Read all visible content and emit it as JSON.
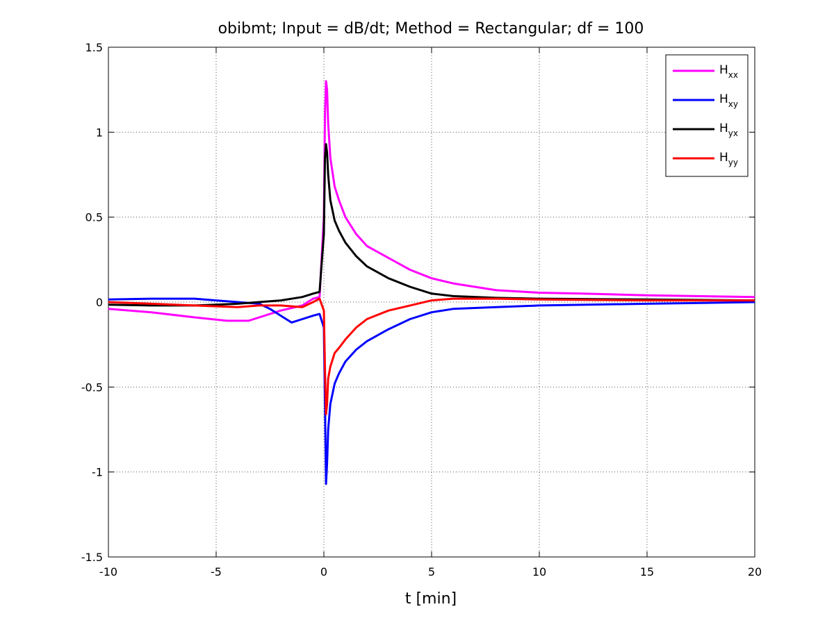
{
  "chart_data": {
    "type": "line",
    "title": "obibmt; Input = dB/dt; Method = Rectangular; df = 100",
    "xlabel": "t [min]",
    "ylabel": "",
    "xlim": [
      -10,
      20
    ],
    "ylim": [
      -1.5,
      1.5
    ],
    "xticks": [
      -10,
      -5,
      0,
      5,
      10,
      15,
      20
    ],
    "yticks": [
      -1.5,
      -1,
      -0.5,
      0,
      0.5,
      1,
      1.5
    ],
    "xtick_labels": [
      "-10",
      "-5",
      "0",
      "5",
      "10",
      "15",
      "20"
    ],
    "ytick_labels": [
      "-1.5",
      "-1",
      "-0.5",
      "0",
      "0.5",
      "1",
      "1.5"
    ],
    "grid": true,
    "legend_position": "top-right",
    "series": [
      {
        "name": "Hxx",
        "main": "H",
        "sub": "xx",
        "color": "#ff00ff",
        "x": [
          -10,
          -8,
          -6,
          -4.5,
          -3.5,
          -3,
          -2,
          -1,
          -0.5,
          -0.2,
          0,
          0.05,
          0.1,
          0.15,
          0.2,
          0.3,
          0.5,
          0.7,
          1,
          1.5,
          2,
          3,
          4,
          5,
          6,
          8,
          10,
          12,
          15,
          20
        ],
        "y": [
          -0.04,
          -0.06,
          -0.09,
          -0.11,
          -0.11,
          -0.09,
          -0.05,
          -0.02,
          0.02,
          0.03,
          0.5,
          1.1,
          1.3,
          1.25,
          1.05,
          0.85,
          0.68,
          0.6,
          0.5,
          0.4,
          0.33,
          0.26,
          0.19,
          0.14,
          0.11,
          0.07,
          0.055,
          0.05,
          0.04,
          0.03
        ]
      },
      {
        "name": "Hxy",
        "main": "H",
        "sub": "xy",
        "color": "#0000ff",
        "x": [
          -10,
          -8,
          -6,
          -5,
          -4,
          -3,
          -2.5,
          -2,
          -1.5,
          -1,
          -0.5,
          -0.2,
          0,
          0.05,
          0.1,
          0.15,
          0.2,
          0.3,
          0.5,
          0.7,
          1,
          1.5,
          2,
          3,
          4,
          5,
          6,
          8,
          10,
          15,
          20
        ],
        "y": [
          0.015,
          0.02,
          0.02,
          0.01,
          0.0,
          -0.01,
          -0.04,
          -0.08,
          -0.12,
          -0.1,
          -0.08,
          -0.07,
          -0.15,
          -0.6,
          -1.07,
          -0.95,
          -0.75,
          -0.6,
          -0.48,
          -0.42,
          -0.35,
          -0.28,
          -0.23,
          -0.16,
          -0.1,
          -0.06,
          -0.04,
          -0.03,
          -0.02,
          -0.01,
          0.0
        ]
      },
      {
        "name": "Hyx",
        "main": "H",
        "sub": "yx",
        "color": "#000000",
        "x": [
          -10,
          -8,
          -6,
          -5,
          -4,
          -3,
          -2,
          -1,
          -0.5,
          -0.2,
          0,
          0.05,
          0.1,
          0.15,
          0.2,
          0.3,
          0.5,
          0.7,
          1,
          1.5,
          2,
          3,
          4,
          5,
          6,
          8,
          10,
          15,
          20
        ],
        "y": [
          -0.015,
          -0.02,
          -0.02,
          -0.015,
          -0.01,
          0.0,
          0.01,
          0.03,
          0.05,
          0.06,
          0.4,
          0.85,
          0.93,
          0.88,
          0.75,
          0.6,
          0.48,
          0.42,
          0.35,
          0.27,
          0.21,
          0.14,
          0.09,
          0.05,
          0.035,
          0.025,
          0.02,
          0.015,
          0.01
        ]
      },
      {
        "name": "Hyy",
        "main": "H",
        "sub": "yy",
        "color": "#ff0000",
        "x": [
          -10,
          -8,
          -6,
          -5,
          -4,
          -3,
          -2,
          -1,
          -0.5,
          -0.2,
          0,
          0.05,
          0.1,
          0.15,
          0.2,
          0.3,
          0.5,
          0.7,
          1,
          1.5,
          2,
          3,
          4,
          5,
          6,
          8,
          10,
          15,
          20
        ],
        "y": [
          0.0,
          -0.01,
          -0.02,
          -0.025,
          -0.03,
          -0.02,
          -0.02,
          -0.03,
          0.0,
          0.02,
          -0.05,
          -0.4,
          -0.66,
          -0.6,
          -0.45,
          -0.38,
          -0.3,
          -0.27,
          -0.22,
          -0.15,
          -0.1,
          -0.05,
          -0.02,
          0.01,
          0.02,
          0.02,
          0.015,
          0.01,
          0.01
        ]
      }
    ]
  }
}
